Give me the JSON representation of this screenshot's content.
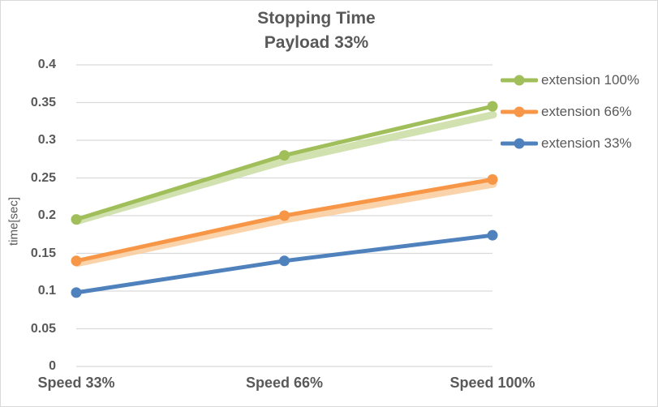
{
  "chart_data": {
    "type": "line",
    "title_lines": [
      "Stopping Time",
      "Payload 33%"
    ],
    "categories": [
      "Speed 33%",
      "Speed 66%",
      "Speed 100%"
    ],
    "series": [
      {
        "name": "extension 100%",
        "color": "#a0bf5b",
        "shadow_color": "#c9dca2",
        "values": [
          0.195,
          0.28,
          0.345
        ],
        "shadow_values": [
          0.195,
          0.275,
          0.336
        ]
      },
      {
        "name": "extension 66%",
        "color": "#f79646",
        "shadow_color": "#facb9b",
        "values": [
          0.14,
          0.2,
          0.248
        ],
        "shadow_values": [
          0.139,
          0.197,
          0.244
        ]
      },
      {
        "name": "extension 33%",
        "color": "#4f81bd",
        "values": [
          0.098,
          0.14,
          0.174
        ]
      }
    ],
    "xlabel": "",
    "ylabel": "time[sec]",
    "ylim": [
      0,
      0.4
    ],
    "ytick_labels": [
      "0.4",
      "0.35",
      "0.3",
      "0.25",
      "0.2",
      "0.15",
      "0.1",
      "0.05",
      "0"
    ],
    "grid": "horizontal",
    "gridline_color": "#d9d9d9",
    "text_color": "#595959",
    "legend_position": "right"
  }
}
